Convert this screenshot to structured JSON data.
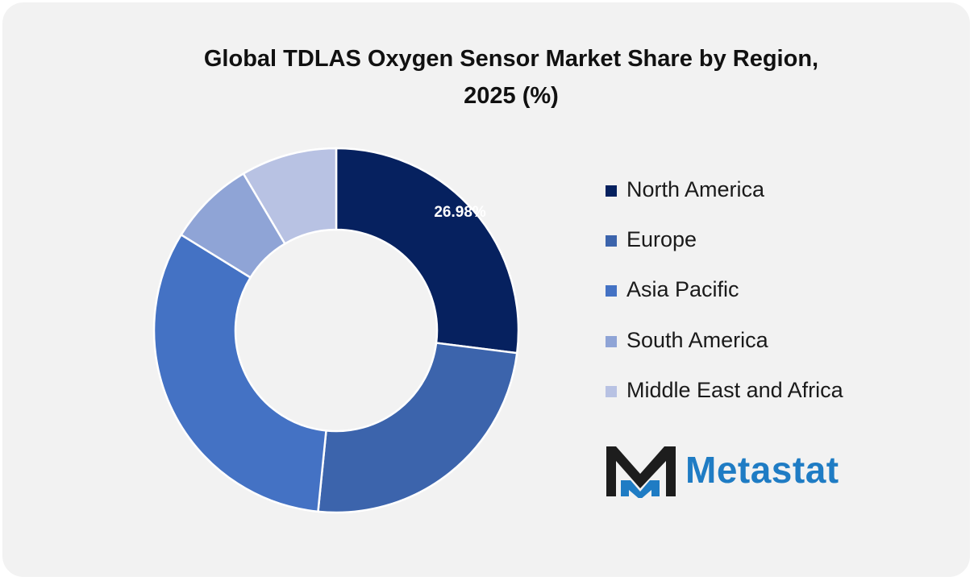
{
  "chart_data": {
    "type": "pie",
    "style": "donut",
    "title": "Global TDLAS Oxygen Sensor Market Share by Region, 2025 (%)",
    "title_lines": [
      "Global TDLAS Oxygen Sensor Market Share by Region,",
      "2025 (%)"
    ],
    "categories": [
      "North America",
      "Europe",
      "Asia Pacific",
      "South America",
      "Middle East and Africa"
    ],
    "values": [
      26.98,
      24.6,
      32.2,
      7.7,
      8.5
    ],
    "data_labels": [
      "26.98%",
      "",
      "",
      "",
      ""
    ],
    "colors": [
      "#06215f",
      "#3c64ac",
      "#4472c4",
      "#8fa4d6",
      "#b8c2e3"
    ],
    "legend_position": "right"
  },
  "logo": {
    "text": "Metastat",
    "colors": {
      "dark": "#1d1d1d",
      "accent": "#1f7cc4"
    }
  },
  "colors": {
    "background": "#f2f2f2",
    "label_text": "#ffffff"
  }
}
